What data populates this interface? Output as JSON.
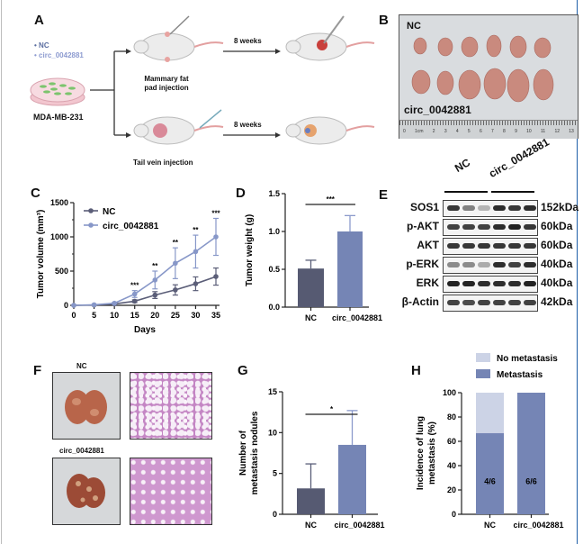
{
  "panels": {
    "A": {
      "label": "A",
      "legend": [
        {
          "bullet": "•",
          "text": "NC",
          "color": "#5a6da0"
        },
        {
          "bullet": "•",
          "text": "circ_0042881",
          "color": "#8d9bd0"
        }
      ],
      "cell_line": "MDA-MB-231",
      "route_top": "Mammary fat pad injection",
      "route_top_line1": "Mammary fat",
      "route_top_line2": "pad injection",
      "route_bottom": "Tail vein injection",
      "duration_top": "8 weeks",
      "duration_bottom": "8 weeks"
    },
    "B": {
      "label": "B",
      "group_top": "NC",
      "group_bottom": "circ_0042881",
      "ruler_labels": [
        "0",
        "1cm",
        "2",
        "3",
        "4",
        "5",
        "6",
        "7",
        "8",
        "9",
        "10",
        "11",
        "12",
        "13"
      ]
    },
    "C": {
      "label": "C"
    },
    "D": {
      "label": "D"
    },
    "E": {
      "label": "E",
      "group_nc": "NC",
      "group_circ": "circ_0042881",
      "rows": [
        {
          "name": "SOS1",
          "kda": "152kDa",
          "intensity": [
            0.9,
            0.55,
            0.3,
            0.95,
            0.9,
            0.95
          ]
        },
        {
          "name": "p-AKT",
          "kda": "60kDa",
          "intensity": [
            0.85,
            0.85,
            0.85,
            0.95,
            1.0,
            0.9
          ]
        },
        {
          "name": "AKT",
          "kda": "60kDa",
          "intensity": [
            0.9,
            0.9,
            0.9,
            0.9,
            0.9,
            0.9
          ]
        },
        {
          "name": "p-ERK",
          "kda": "40kDa",
          "intensity": [
            0.5,
            0.5,
            0.35,
            0.95,
            0.85,
            0.95
          ]
        },
        {
          "name": "ERK",
          "kda": "40kDa",
          "intensity": [
            1.0,
            1.0,
            0.95,
            0.95,
            0.95,
            1.0
          ]
        },
        {
          "name": "β-Actin",
          "kda": "42kDa",
          "intensity": [
            0.85,
            0.8,
            0.85,
            0.85,
            0.85,
            0.85
          ]
        }
      ]
    },
    "F": {
      "label": "F",
      "group_top": "NC",
      "group_bottom": "circ_0042881"
    },
    "G": {
      "label": "G"
    },
    "H": {
      "label": "H"
    }
  },
  "colors": {
    "nc": "#565a72",
    "circ": "#7585b5",
    "no_metastasis": "#ccd3e6",
    "metastasis": "#7585b5",
    "line_nc": "#5b5e78",
    "line_circ": "#8797c8"
  },
  "chart_data": [
    {
      "id": "C",
      "type": "line",
      "title": "",
      "xlabel": "Days",
      "ylabel": "Tumor volume (mm³)",
      "x": [
        0,
        5,
        10,
        15,
        20,
        25,
        30,
        35
      ],
      "xlim": [
        0,
        35
      ],
      "ylim": [
        0,
        1500
      ],
      "xticks": [
        "0",
        "5",
        "10",
        "15",
        "20",
        "25",
        "30",
        "35"
      ],
      "yticks": [
        "0",
        "500",
        "1000",
        "1500"
      ],
      "legend_position": "top-left",
      "series": [
        {
          "name": "NC",
          "values": [
            0,
            5,
            20,
            60,
            150,
            225,
            315,
            420
          ],
          "error": [
            0,
            3,
            8,
            20,
            50,
            75,
            100,
            125
          ]
        },
        {
          "name": "circ_0042881",
          "values": [
            0,
            8,
            30,
            165,
            370,
            615,
            785,
            1000
          ],
          "error": [
            0,
            4,
            10,
            50,
            130,
            225,
            240,
            270
          ]
        }
      ],
      "significance": [
        {
          "x": 15,
          "label": "***"
        },
        {
          "x": 20,
          "label": "**"
        },
        {
          "x": 25,
          "label": "**"
        },
        {
          "x": 30,
          "label": "**"
        },
        {
          "x": 35,
          "label": "***"
        }
      ]
    },
    {
      "id": "D",
      "type": "bar",
      "title": "",
      "xlabel": "",
      "ylabel": "Tumor weight (g)",
      "categories": [
        "NC",
        "circ_0042881"
      ],
      "values": [
        0.51,
        1.0
      ],
      "error": [
        0.11,
        0.21
      ],
      "ylim": [
        0,
        1.5
      ],
      "yticks": [
        "0.0",
        "0.5",
        "1.0",
        "1.5"
      ],
      "significance": "***"
    },
    {
      "id": "G",
      "type": "bar",
      "title": "",
      "xlabel": "",
      "ylabel": "Number of metastasis nodules",
      "ylabel_line1": "Number of",
      "ylabel_line2": "metastasis nodules",
      "categories": [
        "NC",
        "circ_0042881"
      ],
      "values": [
        3.17,
        8.5
      ],
      "error": [
        3.0,
        4.2
      ],
      "ylim": [
        0,
        15
      ],
      "yticks": [
        "0",
        "5",
        "10",
        "15"
      ],
      "significance": "*"
    },
    {
      "id": "H",
      "type": "bar",
      "stacked": true,
      "title": "",
      "xlabel": "",
      "ylabel": "Incidence of lung metastasis (%)",
      "ylabel_line1": "Incidence of lung",
      "ylabel_line2": "metastasis (%)",
      "categories": [
        "NC",
        "circ_0042881"
      ],
      "series": [
        {
          "name": "Metastasis",
          "values": [
            66.7,
            100
          ]
        },
        {
          "name": "No metastasis",
          "values": [
            33.3,
            0
          ]
        }
      ],
      "bar_labels": [
        "4/6",
        "6/6"
      ],
      "ylim": [
        0,
        100
      ],
      "yticks": [
        "0",
        "20",
        "40",
        "60",
        "80",
        "100"
      ],
      "legend_position": "top"
    }
  ]
}
